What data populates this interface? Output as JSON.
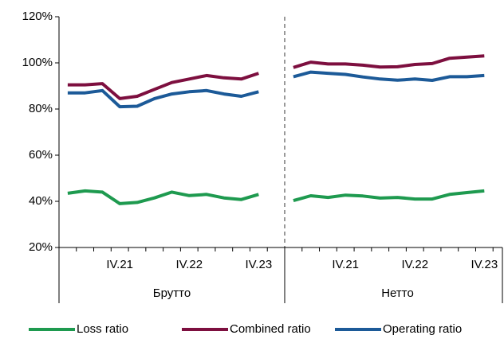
{
  "chart_data": {
    "type": "line",
    "categories": [
      null,
      null,
      null,
      "IV.21",
      null,
      null,
      null,
      "IV.22",
      null,
      null,
      null,
      "IV.23",
      null,
      null,
      null,
      "IV.21",
      null,
      null,
      null,
      "IV.22",
      null,
      null,
      null,
      "IV.23"
    ],
    "groups": [
      "Брутто",
      "Нетто"
    ],
    "series": [
      {
        "name": "Loss ratio",
        "color": "#1e9a4f",
        "values": [
          43.5,
          44.5,
          44,
          39,
          39.5,
          41.5,
          44,
          42.5,
          43,
          41.5,
          40.8,
          43,
          40.3,
          42.4,
          41.7,
          42.7,
          42.3,
          41.4,
          41.7,
          41,
          41,
          43,
          43.8,
          44.5
        ]
      },
      {
        "name": "Combined ratio",
        "color": "#7d0f3f",
        "values": [
          90.5,
          90.5,
          91,
          84.5,
          85.5,
          88.5,
          91.5,
          93,
          94.5,
          93.5,
          93,
          95.5,
          98,
          100.3,
          99.5,
          99.5,
          99,
          98.2,
          98.3,
          99.3,
          99.7,
          102,
          102.5,
          103
        ]
      },
      {
        "name": "Operating ratio",
        "color": "#1c5a98",
        "values": [
          87,
          87,
          88,
          81,
          81.2,
          84.5,
          86.5,
          87.5,
          88,
          86.5,
          85.5,
          87.5,
          94,
          96,
          95.5,
          95,
          93.9,
          93,
          92.5,
          93,
          92.4,
          94,
          94,
          94.5
        ]
      }
    ],
    "ylim": [
      20,
      120
    ],
    "yticks": [
      {
        "value": 20,
        "label": "20%"
      },
      {
        "value": 40,
        "label": "40%"
      },
      {
        "value": 60,
        "label": "60%"
      },
      {
        "value": 80,
        "label": "80%"
      },
      {
        "value": 100,
        "label": "100%"
      },
      {
        "value": 120,
        "label": "120%"
      }
    ],
    "legend": "bottom"
  }
}
